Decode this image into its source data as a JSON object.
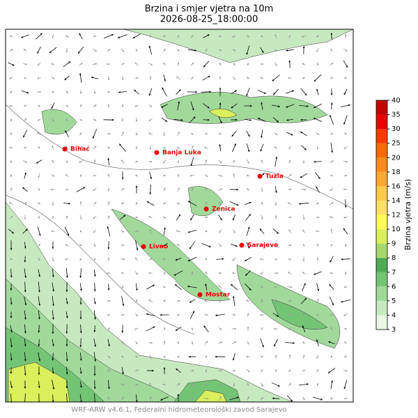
{
  "title": "Brzina i smjer vjetra na 10m",
  "subtitle": "2026-08-25_18:00:00",
  "footer": "WRF-ARW v4.6.1, Federalni hidrometeorološki zavod Sarajevo",
  "cities": [
    "Bihać",
    "Banja Luka",
    "Tuzla",
    "Zenica",
    "Livno",
    "Sarajevo",
    "Mostar"
  ],
  "colorbar": {
    "label": "Brzina vjetra (m/s)",
    "levels": [
      3,
      4,
      5,
      6,
      7,
      8,
      9,
      10,
      12,
      14,
      16,
      18,
      20,
      25,
      30,
      35,
      40
    ],
    "colors": [
      "#e9f7e4",
      "#c7e9c0",
      "#a1d99b",
      "#74c476",
      "#4eaa55",
      "#a6d96a",
      "#d9ef5b",
      "#ffff55",
      "#ffe066",
      "#ffc94a",
      "#ffa733",
      "#ff8a1a",
      "#ff6a00",
      "#ff3b00",
      "#e80000",
      "#c40000"
    ]
  }
}
